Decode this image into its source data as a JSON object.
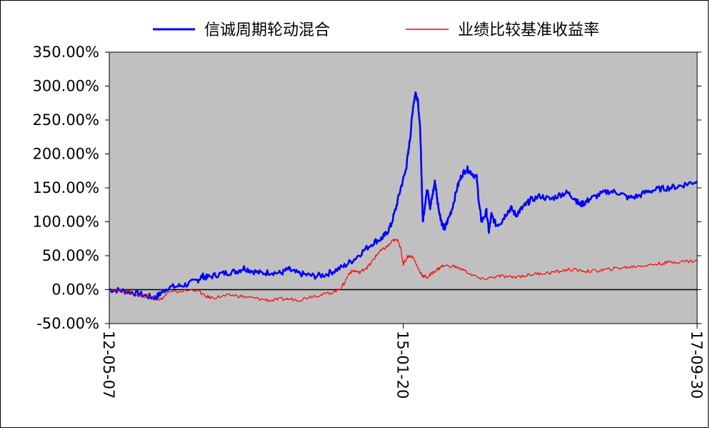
{
  "chart_data": {
    "type": "line",
    "title": "",
    "xlabel": "",
    "ylabel": "",
    "x_tick_labels": [
      "12-05-07",
      "15-01-20",
      "17-09-30"
    ],
    "y_tick_labels": [
      "350.00%",
      "300.00%",
      "250.00%",
      "200.00%",
      "150.00%",
      "100.00%",
      "50.00%",
      "0.00%",
      "-50.00%"
    ],
    "y_tick_values": [
      350,
      300,
      250,
      200,
      150,
      100,
      50,
      0,
      -50
    ],
    "ylim": [
      -50,
      350
    ],
    "x_unit": "fraction of period 2012-05-07 to 2017-09-30",
    "y_unit": "%",
    "grid": false,
    "legend_position": "top",
    "background": "#c0c0c0",
    "series": [
      {
        "name": "信诚周期轮动混合",
        "color": "#0000ff",
        "points": [
          [
            0.0,
            0
          ],
          [
            0.02,
            -1
          ],
          [
            0.04,
            -3
          ],
          [
            0.06,
            -6
          ],
          [
            0.08,
            -10
          ],
          [
            0.095,
            -12
          ],
          [
            0.105,
            -5
          ],
          [
            0.12,
            3
          ],
          [
            0.14,
            5
          ],
          [
            0.16,
            8
          ],
          [
            0.18,
            14
          ],
          [
            0.19,
            20
          ],
          [
            0.2,
            18
          ],
          [
            0.22,
            22
          ],
          [
            0.24,
            25
          ],
          [
            0.26,
            27
          ],
          [
            0.275,
            32
          ],
          [
            0.29,
            28
          ],
          [
            0.31,
            24
          ],
          [
            0.33,
            26
          ],
          [
            0.35,
            24
          ],
          [
            0.365,
            30
          ],
          [
            0.38,
            25
          ],
          [
            0.4,
            22
          ],
          [
            0.42,
            20
          ],
          [
            0.44,
            22
          ],
          [
            0.46,
            28
          ],
          [
            0.48,
            35
          ],
          [
            0.5,
            45
          ],
          [
            0.52,
            58
          ],
          [
            0.54,
            70
          ],
          [
            0.555,
            75
          ],
          [
            0.565,
            82
          ],
          [
            0.575,
            95
          ],
          [
            0.585,
            120
          ],
          [
            0.595,
            150
          ],
          [
            0.605,
            175
          ],
          [
            0.61,
            200
          ],
          [
            0.615,
            230
          ],
          [
            0.62,
            270
          ],
          [
            0.625,
            290
          ],
          [
            0.63,
            280
          ],
          [
            0.635,
            230
          ],
          [
            0.638,
            150
          ],
          [
            0.64,
            100
          ],
          [
            0.645,
            130
          ],
          [
            0.65,
            150
          ],
          [
            0.655,
            120
          ],
          [
            0.66,
            140
          ],
          [
            0.665,
            160
          ],
          [
            0.67,
            130
          ],
          [
            0.675,
            110
          ],
          [
            0.68,
            95
          ],
          [
            0.685,
            90
          ],
          [
            0.69,
            100
          ],
          [
            0.7,
            120
          ],
          [
            0.71,
            150
          ],
          [
            0.72,
            170
          ],
          [
            0.73,
            178
          ],
          [
            0.74,
            172
          ],
          [
            0.75,
            165
          ],
          [
            0.755,
            125
          ],
          [
            0.76,
            100
          ],
          [
            0.77,
            115
          ],
          [
            0.775,
            85
          ],
          [
            0.78,
            110
          ],
          [
            0.79,
            95
          ],
          [
            0.8,
            100
          ],
          [
            0.81,
            112
          ],
          [
            0.82,
            120
          ],
          [
            0.83,
            110
          ],
          [
            0.84,
            118
          ],
          [
            0.85,
            125
          ],
          [
            0.86,
            132
          ],
          [
            0.88,
            138
          ],
          [
            0.9,
            133
          ],
          [
            0.92,
            140
          ],
          [
            0.935,
            143
          ],
          [
            0.95,
            135
          ],
          [
            0.96,
            125
          ],
          [
            0.97,
            128
          ],
          [
            0.98,
            133
          ],
          [
            1.0,
            140
          ],
          [
            1.02,
            145
          ],
          [
            1.04,
            143
          ],
          [
            1.06,
            135
          ],
          [
            1.08,
            138
          ],
          [
            1.1,
            145
          ],
          [
            1.12,
            148
          ],
          [
            1.14,
            150
          ],
          [
            1.16,
            152
          ],
          [
            1.18,
            156
          ],
          [
            1.2,
            160
          ]
        ]
      },
      {
        "name": "业绩比较基准收益率",
        "color": "#ff0000",
        "points": [
          [
            0.0,
            0
          ],
          [
            0.03,
            -2
          ],
          [
            0.06,
            -8
          ],
          [
            0.09,
            -12
          ],
          [
            0.105,
            -15
          ],
          [
            0.12,
            -5
          ],
          [
            0.15,
            -2
          ],
          [
            0.18,
            0
          ],
          [
            0.195,
            -10
          ],
          [
            0.21,
            -12
          ],
          [
            0.23,
            -10
          ],
          [
            0.25,
            -8
          ],
          [
            0.27,
            -10
          ],
          [
            0.29,
            -12
          ],
          [
            0.31,
            -14
          ],
          [
            0.33,
            -16
          ],
          [
            0.35,
            -14
          ],
          [
            0.37,
            -14
          ],
          [
            0.39,
            -15
          ],
          [
            0.41,
            -10
          ],
          [
            0.43,
            -8
          ],
          [
            0.45,
            -5
          ],
          [
            0.47,
            0
          ],
          [
            0.48,
            10
          ],
          [
            0.49,
            25
          ],
          [
            0.5,
            28
          ],
          [
            0.51,
            25
          ],
          [
            0.52,
            30
          ],
          [
            0.53,
            35
          ],
          [
            0.54,
            45
          ],
          [
            0.55,
            55
          ],
          [
            0.56,
            60
          ],
          [
            0.57,
            65
          ],
          [
            0.58,
            73
          ],
          [
            0.59,
            72
          ],
          [
            0.595,
            60
          ],
          [
            0.6,
            38
          ],
          [
            0.61,
            50
          ],
          [
            0.62,
            48
          ],
          [
            0.63,
            32
          ],
          [
            0.64,
            20
          ],
          [
            0.65,
            18
          ],
          [
            0.66,
            25
          ],
          [
            0.67,
            30
          ],
          [
            0.68,
            35
          ],
          [
            0.7,
            35
          ],
          [
            0.72,
            30
          ],
          [
            0.74,
            22
          ],
          [
            0.76,
            15
          ],
          [
            0.78,
            18
          ],
          [
            0.8,
            20
          ],
          [
            0.82,
            18
          ],
          [
            0.84,
            20
          ],
          [
            0.86,
            22
          ],
          [
            0.88,
            24
          ],
          [
            0.9,
            25
          ],
          [
            0.92,
            27
          ],
          [
            0.94,
            30
          ],
          [
            0.96,
            28
          ],
          [
            0.98,
            27
          ],
          [
            1.0,
            28
          ],
          [
            1.02,
            30
          ],
          [
            1.04,
            32
          ],
          [
            1.06,
            33
          ],
          [
            1.08,
            35
          ],
          [
            1.1,
            36
          ],
          [
            1.12,
            38
          ],
          [
            1.14,
            40
          ],
          [
            1.16,
            41
          ],
          [
            1.18,
            42
          ],
          [
            1.2,
            42
          ]
        ]
      }
    ]
  }
}
